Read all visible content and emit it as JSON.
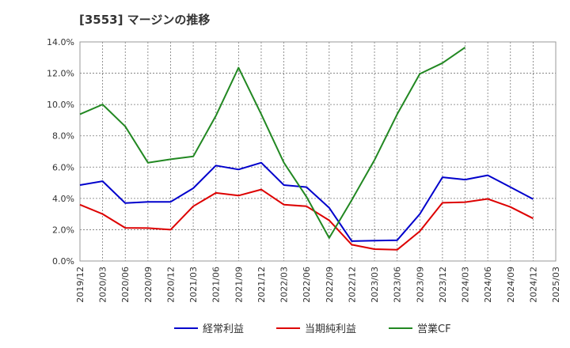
{
  "title": "[3553]  マージンの推移",
  "chart_data": {
    "type": "line",
    "title": "[3553]  マージンの推移",
    "x": [
      "2019/12",
      "2020/03",
      "2020/06",
      "2020/09",
      "2020/12",
      "2021/03",
      "2021/06",
      "2021/09",
      "2021/12",
      "2022/03",
      "2022/06",
      "2022/09",
      "2022/12",
      "2023/03",
      "2023/06",
      "2023/09",
      "2023/12",
      "2024/03",
      "2024/06",
      "2024/09",
      "2024/12",
      "2025/03"
    ],
    "ylim": [
      0,
      14
    ],
    "y_ticks": [
      "0.0%",
      "2.0%",
      "4.0%",
      "6.0%",
      "8.0%",
      "10.0%",
      "12.0%",
      "14.0%"
    ],
    "y_tick_values": [
      0,
      2,
      4,
      6,
      8,
      10,
      12,
      14
    ],
    "grid": true,
    "legend_position": "bottom",
    "series": [
      {
        "name": "経常利益",
        "color": "#0000cc",
        "values": [
          4.85,
          5.1,
          3.7,
          3.78,
          3.78,
          4.65,
          6.1,
          5.85,
          6.28,
          4.85,
          4.72,
          3.4,
          1.27,
          1.3,
          1.33,
          3.0,
          5.35,
          5.2,
          5.48,
          4.72,
          3.95,
          null
        ]
      },
      {
        "name": "当期純利益",
        "color": "#dd0000",
        "values": [
          3.6,
          3.0,
          2.12,
          2.1,
          2.0,
          3.5,
          4.35,
          4.18,
          4.57,
          3.6,
          3.5,
          2.6,
          1.04,
          0.76,
          0.72,
          1.9,
          3.72,
          3.76,
          3.97,
          3.45,
          2.72,
          null
        ]
      },
      {
        "name": "営業CF",
        "color": "#228822",
        "values": [
          9.38,
          10.0,
          8.6,
          6.28,
          6.5,
          6.68,
          9.28,
          12.35,
          9.38,
          6.28,
          4.1,
          1.47,
          3.9,
          6.45,
          9.38,
          11.96,
          12.65,
          13.65,
          null,
          null,
          null,
          null
        ]
      }
    ]
  }
}
